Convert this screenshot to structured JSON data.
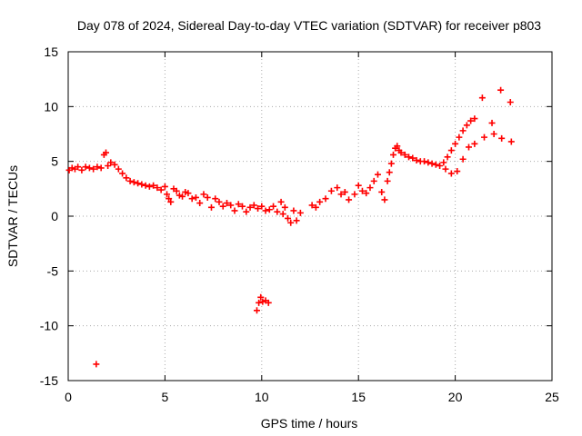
{
  "chart_data": {
    "type": "scatter",
    "title": "Day 078 of 2024, Sidereal Day-to-day VTEC variation (SDTVAR) for receiver p803",
    "xlabel": "GPS time / hours",
    "ylabel": "SDTVAR / TECUs",
    "xlim": [
      0,
      25
    ],
    "ylim": [
      -15,
      15
    ],
    "xticks": [
      "0",
      "5",
      "10",
      "15",
      "20",
      "25"
    ],
    "yticks": [
      "-15",
      "-10",
      "-5",
      "0",
      "5",
      "10",
      "15"
    ],
    "grid": true,
    "marker": "+",
    "color": "#ff0000",
    "series": [
      {
        "name": "SDTVAR",
        "x": [
          0.05,
          0.2,
          0.35,
          0.5,
          0.7,
          0.9,
          1.1,
          1.3,
          1.5,
          1.7,
          1.85,
          1.95,
          2.05,
          2.2,
          2.4,
          2.6,
          2.8,
          3.0,
          3.2,
          3.4,
          3.6,
          3.8,
          4.0,
          4.2,
          4.4,
          4.6,
          4.8,
          5.0,
          5.1,
          5.2,
          5.3,
          5.45,
          5.6,
          5.75,
          5.9,
          6.05,
          6.2,
          6.4,
          6.6,
          6.8,
          7.0,
          7.2,
          7.4,
          7.6,
          7.8,
          8.0,
          8.2,
          8.4,
          8.6,
          8.8,
          9.0,
          9.2,
          9.4,
          9.6,
          9.8,
          10.0,
          10.2,
          10.4,
          10.6,
          10.8,
          11.0,
          11.1,
          11.2,
          11.35,
          11.5,
          11.65,
          11.8,
          12.0,
          12.6,
          12.8,
          13.0,
          13.3,
          13.6,
          13.9,
          14.1,
          14.3,
          14.5,
          14.8,
          15.0,
          15.2,
          15.4,
          15.6,
          15.8,
          16.0,
          16.2,
          16.35,
          16.5,
          16.6,
          16.7,
          16.8,
          16.9,
          17.0,
          17.1,
          17.2,
          17.4,
          17.6,
          17.8,
          18.0,
          18.2,
          18.4,
          18.6,
          18.8,
          19.0,
          19.2,
          19.4,
          19.6,
          19.8,
          20.0,
          20.2,
          20.4,
          20.6,
          20.8,
          21.0,
          19.5,
          19.8,
          20.1,
          20.4,
          20.7,
          21.0,
          21.4,
          21.5,
          21.9,
          22.0,
          22.35,
          22.4,
          22.85,
          22.9,
          1.45,
          9.75,
          9.85,
          9.95,
          10.05,
          10.2,
          10.35
        ],
        "y": [
          4.2,
          4.4,
          4.3,
          4.5,
          4.2,
          4.5,
          4.4,
          4.3,
          4.5,
          4.4,
          5.6,
          5.8,
          4.6,
          4.9,
          4.7,
          4.3,
          3.9,
          3.5,
          3.2,
          3.1,
          3.0,
          2.9,
          2.8,
          2.7,
          2.8,
          2.6,
          2.4,
          2.7,
          2.0,
          1.6,
          1.3,
          2.5,
          2.3,
          1.9,
          1.8,
          2.2,
          2.1,
          1.6,
          1.7,
          1.2,
          2.0,
          1.7,
          0.8,
          1.6,
          1.3,
          0.9,
          1.2,
          1.0,
          0.5,
          1.1,
          0.9,
          0.4,
          0.8,
          1.0,
          0.7,
          0.9,
          0.5,
          0.6,
          0.9,
          0.4,
          1.3,
          0.2,
          0.8,
          -0.2,
          -0.6,
          0.5,
          -0.4,
          0.3,
          1.0,
          0.8,
          1.3,
          1.6,
          2.3,
          2.6,
          2.0,
          2.2,
          1.5,
          2.0,
          2.8,
          2.3,
          2.1,
          2.6,
          3.2,
          3.8,
          2.2,
          1.5,
          3.2,
          4.0,
          4.8,
          5.6,
          6.2,
          6.4,
          6.0,
          5.8,
          5.6,
          5.4,
          5.3,
          5.1,
          5.0,
          5.0,
          4.9,
          4.8,
          4.7,
          4.6,
          4.9,
          5.4,
          6.0,
          6.6,
          7.2,
          7.8,
          8.3,
          8.7,
          8.9,
          4.3,
          3.9,
          4.1,
          5.2,
          6.3,
          6.6,
          10.8,
          7.2,
          8.5,
          7.5,
          11.5,
          7.1,
          10.4,
          6.8,
          -13.5,
          -8.6,
          -7.9,
          -7.4,
          -7.8,
          -7.7,
          -7.9
        ]
      }
    ]
  }
}
